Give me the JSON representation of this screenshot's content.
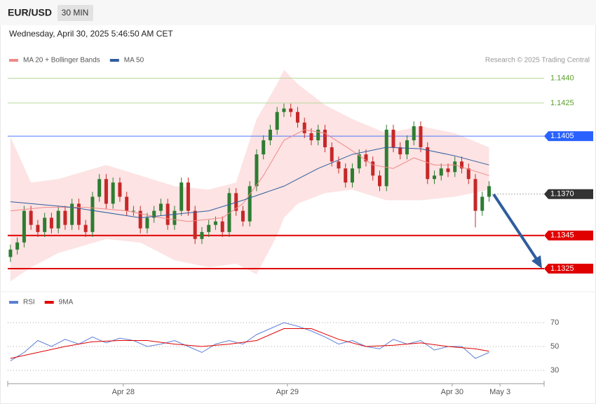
{
  "header": {
    "symbol": "EUR/USD",
    "interval": "30 MIN",
    "timestamp": "Wednesday, April 30, 2025 5:46:50 AM CET",
    "source": "Research © 2025 Trading Central"
  },
  "chart_data": [
    {
      "type": "candlestick",
      "up_color": "#2e7d32",
      "down_color": "#c62828",
      "ylim": [
        1.1311,
        1.1472
      ],
      "xlim": [
        -0.4,
        78.05
      ],
      "x": [
        0,
        1,
        2,
        3,
        4,
        5,
        6,
        7,
        8,
        9,
        10,
        11,
        12,
        13,
        14,
        15,
        16,
        17,
        18,
        19,
        20,
        21,
        22,
        23,
        24,
        25,
        26,
        27,
        28,
        29,
        30,
        31,
        32,
        33,
        34,
        35,
        36,
        37,
        38,
        39,
        40,
        41,
        42,
        43,
        44,
        45,
        46,
        47,
        48,
        49,
        50,
        51,
        52,
        53,
        54,
        55,
        56,
        57,
        58,
        59,
        60,
        61,
        62,
        63,
        64,
        65,
        66,
        67,
        68,
        69,
        70
      ],
      "open": [
        1.1332,
        1.13365,
        1.13408,
        1.13599,
        1.13514,
        1.13471,
        1.13557,
        1.13493,
        1.13599,
        1.13514,
        1.13642,
        1.13514,
        1.13471,
        1.13684,
        1.13791,
        1.13642,
        1.1377,
        1.13684,
        1.13599,
        1.13599,
        1.13493,
        1.13557,
        1.13599,
        1.13642,
        1.13514,
        1.13599,
        1.1377,
        1.13599,
        1.13429,
        1.13471,
        1.13514,
        1.13535,
        1.13471,
        1.13706,
        1.13599,
        1.13535,
        1.13748,
        1.1394,
        1.14025,
        1.14089,
        1.14196,
        1.14217,
        1.14196,
        1.14132,
        1.14068,
        1.14025,
        1.14089,
        1.13983,
        1.13897,
        1.13855,
        1.1377,
        1.13855,
        1.1394,
        1.13897,
        1.13812,
        1.13748,
        1.14089,
        1.13983,
        1.1394,
        1.14025,
        1.1411,
        1.13983,
        1.13791,
        1.13812,
        1.13855,
        1.13833,
        1.13897,
        1.13855,
        1.13791,
        1.13599,
        1.13684
      ],
      "high": [
        1.13395,
        1.13438,
        1.13629,
        1.13629,
        1.13544,
        1.13587,
        1.13587,
        1.13629,
        1.13629,
        1.13672,
        1.13672,
        1.13544,
        1.13714,
        1.13821,
        1.13821,
        1.138,
        1.138,
        1.13714,
        1.13629,
        1.13629,
        1.13587,
        1.13629,
        1.13672,
        1.13672,
        1.13629,
        1.138,
        1.138,
        1.13629,
        1.13501,
        1.13544,
        1.13565,
        1.13565,
        1.13736,
        1.13736,
        1.13629,
        1.13778,
        1.1397,
        1.14055,
        1.14119,
        1.14226,
        1.14247,
        1.14247,
        1.14226,
        1.14162,
        1.14098,
        1.14119,
        1.14119,
        1.14013,
        1.13927,
        1.13885,
        1.13885,
        1.1397,
        1.1397,
        1.13927,
        1.13842,
        1.14119,
        1.14119,
        1.14013,
        1.14055,
        1.1414,
        1.1414,
        1.14013,
        1.13842,
        1.13885,
        1.13885,
        1.13927,
        1.13927,
        1.13885,
        1.13821,
        1.13714,
        1.13778
      ],
      "low": [
        1.1329,
        1.13335,
        1.13378,
        1.13484,
        1.13441,
        1.13441,
        1.13463,
        1.13463,
        1.13484,
        1.13484,
        1.13484,
        1.13441,
        1.13441,
        1.13654,
        1.13612,
        1.13612,
        1.13654,
        1.13569,
        1.13569,
        1.13463,
        1.13463,
        1.13527,
        1.13569,
        1.13484,
        1.13484,
        1.13569,
        1.13569,
        1.13399,
        1.13399,
        1.13441,
        1.13484,
        1.13441,
        1.13441,
        1.13569,
        1.13505,
        1.13505,
        1.13718,
        1.1391,
        1.13995,
        1.14059,
        1.14166,
        1.14166,
        1.14102,
        1.14038,
        1.13995,
        1.13995,
        1.13953,
        1.13867,
        1.13825,
        1.1374,
        1.1374,
        1.13825,
        1.13867,
        1.13782,
        1.13718,
        1.13718,
        1.13953,
        1.1391,
        1.1391,
        1.13995,
        1.13953,
        1.13761,
        1.13761,
        1.13782,
        1.13803,
        1.13803,
        1.13825,
        1.13761,
        1.13499,
        1.13569,
        1.13654
      ],
      "close": [
        1.13365,
        1.13408,
        1.13599,
        1.13514,
        1.13471,
        1.13557,
        1.13493,
        1.13599,
        1.13514,
        1.13642,
        1.13514,
        1.13471,
        1.13684,
        1.13791,
        1.13642,
        1.1377,
        1.13684,
        1.13599,
        1.13599,
        1.13493,
        1.13557,
        1.13599,
        1.13642,
        1.13514,
        1.13599,
        1.1377,
        1.13599,
        1.13429,
        1.13471,
        1.13514,
        1.13535,
        1.13471,
        1.13706,
        1.13599,
        1.13535,
        1.13748,
        1.1394,
        1.14025,
        1.14089,
        1.14196,
        1.14217,
        1.14196,
        1.14132,
        1.14068,
        1.14025,
        1.14089,
        1.13983,
        1.13897,
        1.13855,
        1.1377,
        1.13855,
        1.1394,
        1.13897,
        1.13812,
        1.13748,
        1.14089,
        1.13983,
        1.1394,
        1.14025,
        1.1411,
        1.13983,
        1.13791,
        1.13812,
        1.13855,
        1.13833,
        1.13897,
        1.13855,
        1.13791,
        1.13599,
        1.13684,
        1.13748
      ],
      "bands": {
        "color": "#fde3e3",
        "x": [
          0,
          3,
          7,
          14,
          19,
          24,
          29,
          33,
          36,
          39,
          40,
          42,
          46,
          50,
          55,
          60,
          65,
          70
        ],
        "upper": [
          1.14046,
          1.1377,
          1.13791,
          1.13876,
          1.13812,
          1.13748,
          1.13727,
          1.1377,
          1.14153,
          1.14366,
          1.14451,
          1.14366,
          1.14238,
          1.14153,
          1.14068,
          1.1411,
          1.14068,
          1.13983
        ],
        "lower": [
          1.13173,
          1.13258,
          1.13344,
          1.13429,
          1.13407,
          1.13301,
          1.13258,
          1.1328,
          1.13216,
          1.1345,
          1.13557,
          1.13642,
          1.13706,
          1.13727,
          1.13663,
          1.13663,
          1.13684,
          1.13727
        ]
      },
      "series": [
        {
          "name": "MA 20 + Bollinger Bands",
          "color": "#f08a8a",
          "x": [
            0,
            5,
            11,
            17,
            22,
            26,
            31,
            34,
            37,
            40,
            43,
            46,
            50,
            53,
            56,
            59,
            62,
            65,
            70
          ],
          "values": [
            1.13599,
            1.1362,
            1.1362,
            1.13599,
            1.13557,
            1.13535,
            1.13557,
            1.13642,
            1.13812,
            1.14025,
            1.14089,
            1.14068,
            1.13961,
            1.13876,
            1.13855,
            1.13919,
            1.13876,
            1.13876,
            1.13812
          ]
        },
        {
          "name": "MA 50",
          "color": "#2f5d9e",
          "x": [
            0,
            9,
            19,
            29,
            34,
            40,
            45,
            50,
            55,
            60,
            65,
            70
          ],
          "values": [
            1.13654,
            1.1362,
            1.13557,
            1.13599,
            1.13663,
            1.13748,
            1.13855,
            1.1394,
            1.13983,
            1.13974,
            1.13931,
            1.13876
          ]
        }
      ],
      "levels": [
        {
          "value": 1.144,
          "label": "1.1440",
          "color": "#b7d99e",
          "text_color": "#5aa02c",
          "style": "solid",
          "box": false
        },
        {
          "value": 1.1425,
          "label": "1.1425",
          "color": "#b7d99e",
          "text_color": "#5aa02c",
          "style": "solid",
          "box": false
        },
        {
          "value": 1.1405,
          "label": "1.1405",
          "color": "#4d79ff",
          "text_color": "#ffffff",
          "box_color": "#2962ff",
          "style": "solid",
          "box": true
        },
        {
          "value": 1.137,
          "label": "1.1370",
          "color": "#555555",
          "text_color": "#ffffff",
          "box_color": "#333333",
          "style": "dotted",
          "box": true
        },
        {
          "value": 1.1345,
          "label": "1.1345",
          "color": "#e00000",
          "text_color": "#ffffff",
          "box_color": "#e00000",
          "style": "solid",
          "box": true
        },
        {
          "value": 1.1325,
          "label": "1.1325",
          "color": "#e00000",
          "text_color": "#ffffff",
          "box_color": "#e00000",
          "style": "solid",
          "box": true
        }
      ]
    },
    {
      "type": "line",
      "ylim": [
        20,
        90
      ],
      "yticks": [
        30,
        50,
        70
      ],
      "xlim": [
        -0.4,
        78.05
      ],
      "xticks": [
        {
          "value": 16.5,
          "label": "Apr 28"
        },
        {
          "value": 40.5,
          "label": "Apr 29"
        },
        {
          "value": 64.6,
          "label": "Apr 30"
        },
        {
          "value": 71.6,
          "label": "May 3"
        }
      ],
      "series": [
        {
          "name": "RSI",
          "color": "#5b7fd6",
          "x": [
            0,
            2,
            4,
            6,
            8,
            10,
            12,
            14,
            16,
            18,
            20,
            22,
            24,
            26,
            28,
            30,
            32,
            34,
            36,
            38,
            40,
            42,
            44,
            46,
            48,
            50,
            52,
            54,
            56,
            58,
            60,
            62,
            64,
            66,
            68,
            70
          ],
          "values": [
            38,
            45,
            55,
            50,
            56,
            52,
            58,
            53,
            57,
            55,
            50,
            52,
            55,
            50,
            45,
            52,
            55,
            52,
            60,
            65,
            70,
            67,
            63,
            58,
            52,
            55,
            50,
            48,
            56,
            52,
            55,
            47,
            50,
            50,
            40,
            45
          ]
        },
        {
          "name": "9MA",
          "color": "#e00000",
          "x": [
            0,
            4,
            8,
            12,
            16,
            20,
            24,
            28,
            32,
            36,
            40,
            44,
            48,
            52,
            56,
            60,
            64,
            68,
            70
          ],
          "values": [
            40,
            45,
            50,
            54,
            55,
            55,
            52,
            50,
            52,
            55,
            65,
            65,
            56,
            50,
            51,
            53,
            50,
            48,
            46
          ]
        }
      ]
    }
  ]
}
